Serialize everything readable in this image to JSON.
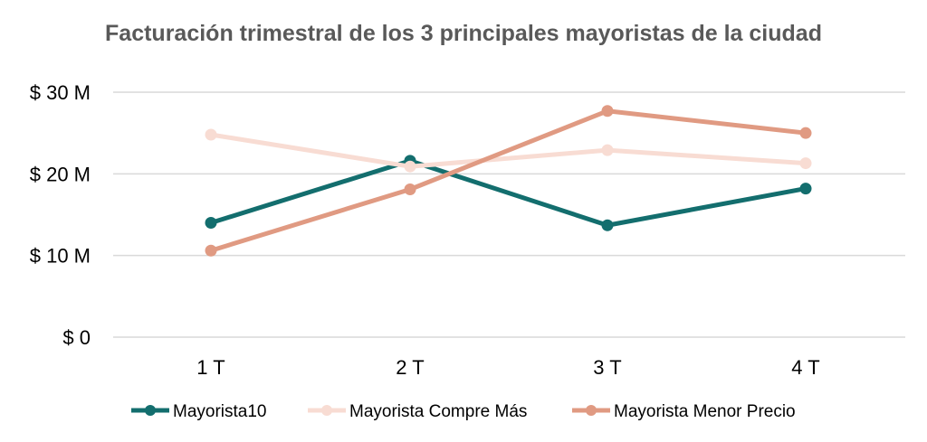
{
  "chart_data": {
    "type": "line",
    "title": "Facturación trimestral de los 3 principales mayoristas de la ciudad",
    "xlabel": "",
    "ylabel": "",
    "categories": [
      "1 T",
      "2 T",
      "3 T",
      "4 T"
    ],
    "y_ticks": [
      "$ 0",
      "$ 10 M",
      "$ 20 M",
      "$ 30 M"
    ],
    "y_tick_values": [
      0,
      10,
      20,
      30
    ],
    "ylim": [
      0,
      30
    ],
    "grid": true,
    "legend_position": "bottom",
    "series": [
      {
        "name": "Mayorista10",
        "color": "#136e6e",
        "values": [
          14.0,
          21.6,
          13.7,
          18.2
        ]
      },
      {
        "name": "Mayorista Compre Más",
        "color": "#f8dcd3",
        "values": [
          24.8,
          20.9,
          22.9,
          21.3
        ]
      },
      {
        "name": "Mayorista Menor Precio",
        "color": "#e09a82",
        "values": [
          10.6,
          18.1,
          27.7,
          25.0
        ]
      }
    ]
  }
}
